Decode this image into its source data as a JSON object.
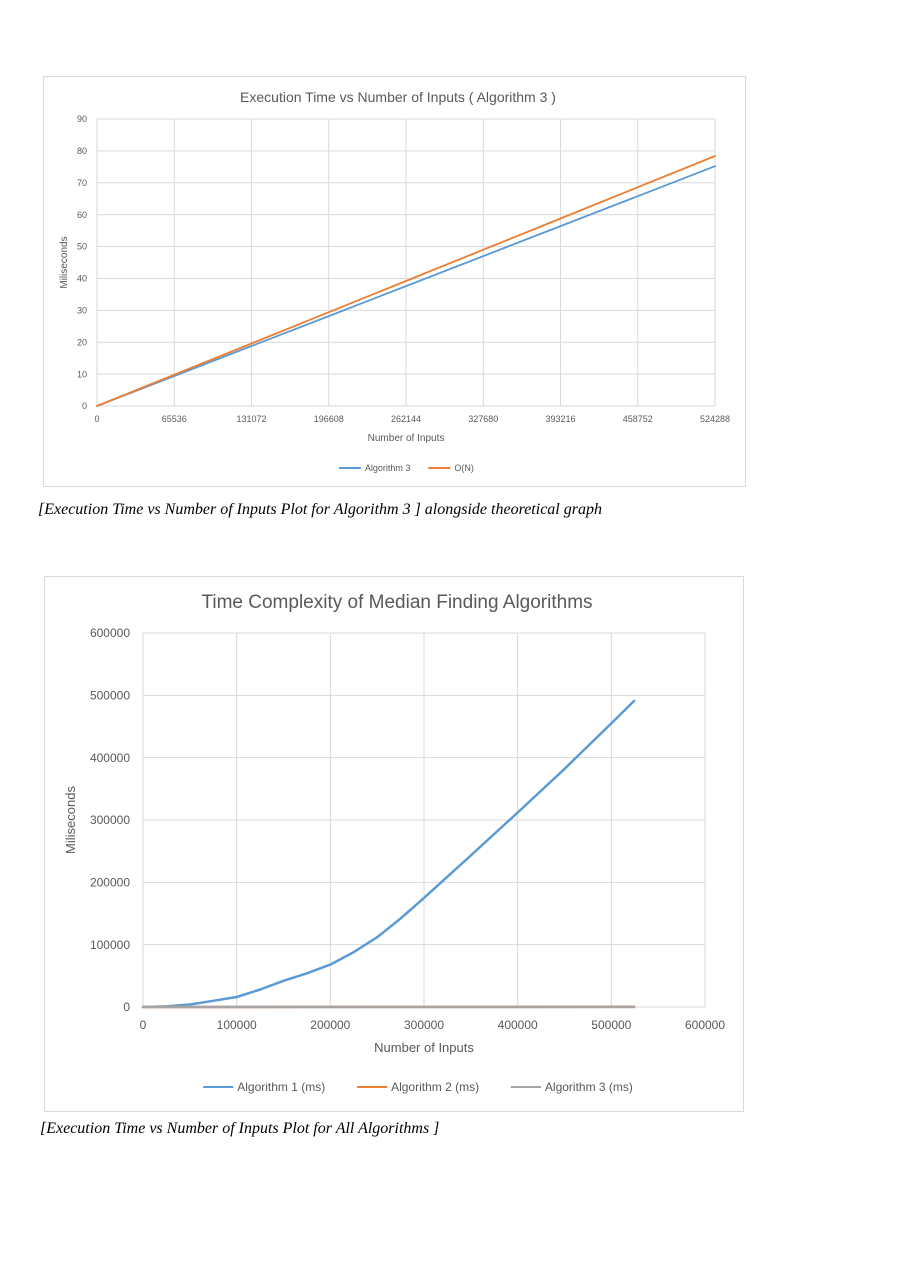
{
  "chart_data": [
    {
      "type": "line",
      "title": "Execution Time vs Number of Inputs ( Algorithm 3 )",
      "xlabel": "Number of Inputs",
      "ylabel": "Miliseconds",
      "xlim": [
        0,
        524288
      ],
      "ylim": [
        0,
        90
      ],
      "xticks": [
        0,
        65536,
        131072,
        196608,
        262144,
        327680,
        393216,
        458752,
        524288
      ],
      "yticks": [
        0,
        10,
        20,
        30,
        40,
        50,
        60,
        70,
        80,
        90
      ],
      "grid": true,
      "legend_position": "bottom",
      "series": [
        {
          "name": "Algorithm 3",
          "color": "#5b9bd5",
          "x": [
            0,
            65536,
            131072,
            196608,
            262144,
            327680,
            393216,
            458752,
            524288
          ],
          "y": [
            0,
            9.4,
            18.8,
            28.2,
            37.6,
            47.0,
            56.4,
            65.8,
            75.2
          ]
        },
        {
          "name": "O(N)",
          "color": "#ed7d31",
          "x": [
            0,
            65536,
            131072,
            196608,
            262144,
            327680,
            393216,
            458752,
            524288
          ],
          "y": [
            0,
            9.8,
            19.6,
            29.4,
            39.2,
            49.0,
            58.8,
            68.6,
            78.4
          ]
        }
      ]
    },
    {
      "type": "line",
      "title": "Time Complexity of Median Finding Algorithms",
      "xlabel": "Number of Inputs",
      "ylabel": "Miliseconds",
      "xlim": [
        0,
        600000
      ],
      "ylim": [
        0,
        600000
      ],
      "xticks": [
        0,
        100000,
        200000,
        300000,
        400000,
        500000,
        600000
      ],
      "yticks": [
        0,
        100000,
        200000,
        300000,
        400000,
        500000,
        600000
      ],
      "grid": true,
      "legend_position": "bottom",
      "series": [
        {
          "name": "Algorithm 1 (ms)",
          "color": "#5b9bd5",
          "x": [
            0,
            25000,
            50000,
            75000,
            100000,
            125000,
            150000,
            175000,
            200000,
            225000,
            250000,
            275000,
            300000,
            350000,
            400000,
            450000,
            500000,
            524288
          ],
          "y": [
            0,
            1000,
            4000,
            10000,
            16000,
            28000,
            42000,
            54000,
            68000,
            88000,
            112000,
            142000,
            175000,
            243000,
            312000,
            382000,
            455000,
            491000
          ]
        },
        {
          "name": "Algorithm 2 (ms)",
          "color": "#ed7d31",
          "x": [
            0,
            524288
          ],
          "y": [
            0,
            300
          ]
        },
        {
          "name": "Algorithm 3 (ms)",
          "color": "#a5a5a5",
          "x": [
            0,
            524288
          ],
          "y": [
            0,
            75
          ]
        }
      ]
    }
  ],
  "captions": {
    "chart1": "[Execution Time vs Number of Inputs Plot for Algorithm 3 ] alongside theoretical graph",
    "chart2": "[Execution Time vs Number of Inputs Plot for All Algorithms ]"
  }
}
